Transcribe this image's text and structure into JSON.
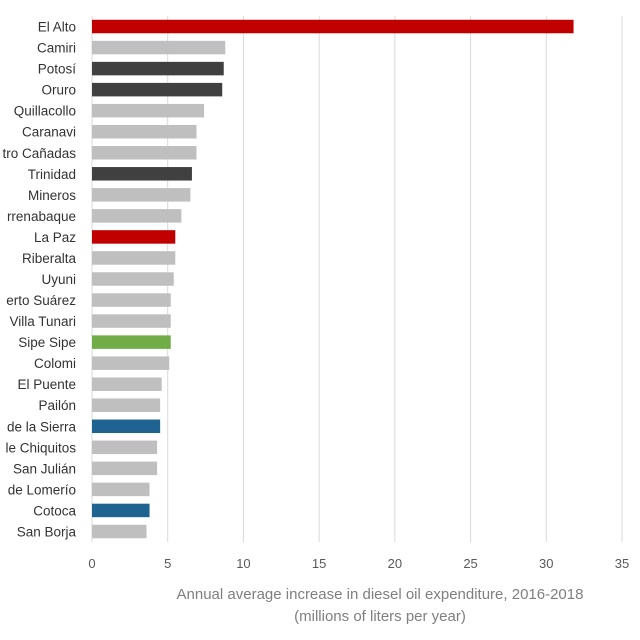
{
  "chart_data": {
    "type": "bar",
    "orientation": "horizontal",
    "xlabel_line1": "Annual average increase in diesel oil expenditure, 2016-2018",
    "xlabel_line2": "(millions of liters per year)",
    "xlim": [
      0,
      35
    ],
    "xticks": [
      "0",
      "5",
      "10",
      "15",
      "20",
      "25",
      "30",
      "35"
    ],
    "grid": "vertical",
    "categories": [
      "El Alto",
      "Camiri",
      "Potosí",
      "Oruro",
      "Quillacollo",
      "Caranavi",
      "tro Cañadas",
      "Trinidad",
      "Mineros",
      "rrenabaque",
      "La Paz",
      "Riberalta",
      "Uyuni",
      "erto Suárez",
      "Villa Tunari",
      "Sipe Sipe",
      "Colomi",
      "El Puente",
      "Pailón",
      "de la Sierra",
      "le Chiquitos",
      "San Julián",
      "de Lomerío",
      "Cotoca",
      "San Borja"
    ],
    "values": [
      31.8,
      8.8,
      8.7,
      8.6,
      7.4,
      6.9,
      6.9,
      6.6,
      6.5,
      5.9,
      5.5,
      5.5,
      5.4,
      5.2,
      5.2,
      5.2,
      5.1,
      4.6,
      4.5,
      4.5,
      4.3,
      4.3,
      3.8,
      3.8,
      3.6
    ],
    "colors": [
      "#c00000",
      "#bfbfbf",
      "#404040",
      "#404040",
      "#bfbfbf",
      "#bfbfbf",
      "#bfbfbf",
      "#404040",
      "#bfbfbf",
      "#bfbfbf",
      "#c00000",
      "#bfbfbf",
      "#bfbfbf",
      "#bfbfbf",
      "#bfbfbf",
      "#70ad47",
      "#bfbfbf",
      "#bfbfbf",
      "#bfbfbf",
      "#1f6391",
      "#bfbfbf",
      "#bfbfbf",
      "#bfbfbf",
      "#1f6391",
      "#bfbfbf"
    ]
  }
}
